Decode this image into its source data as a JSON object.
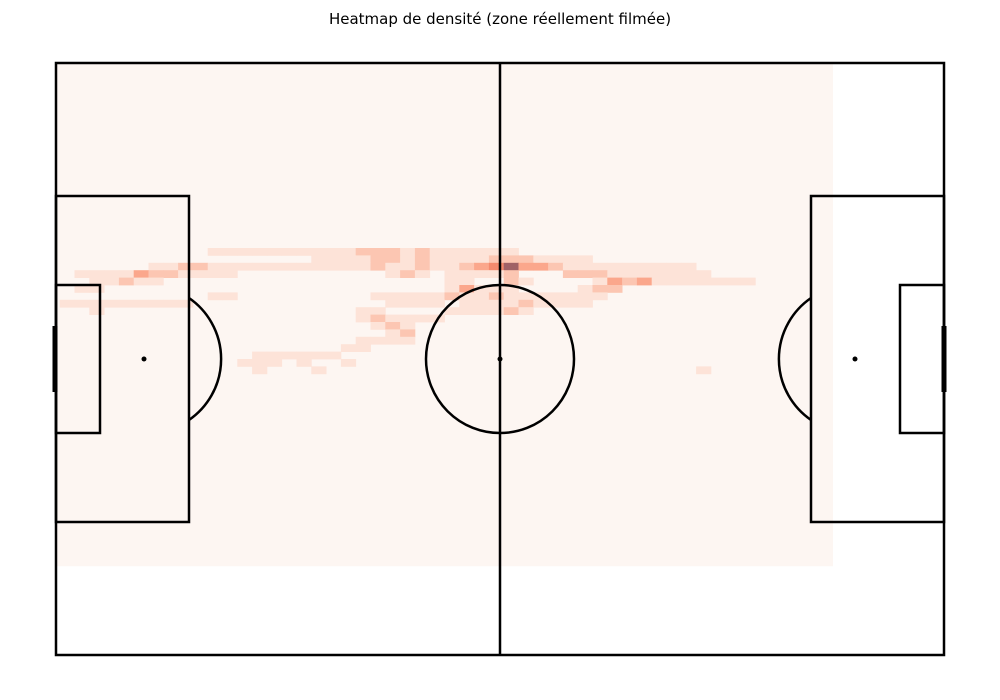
{
  "chart_data": {
    "type": "heatmap",
    "title": "Heatmap de densité (zone réellement filmée)",
    "xlabel": "",
    "ylabel": "",
    "colormap": [
      "#fdf6f2",
      "#fde3d8",
      "#fcc6b2",
      "#fba78c",
      "#f48a6e",
      "#a06166"
    ],
    "pitch": {
      "length_m": 120,
      "width_m": 80,
      "line_color": "#000000",
      "filmed_zone_x": [
        0,
        105
      ],
      "filmed_zone_y": [
        0,
        68
      ]
    },
    "cells": [
      {
        "x": 21.5,
        "y": 25.5,
        "v": 1
      },
      {
        "x": 23.5,
        "y": 25.5,
        "v": 1
      },
      {
        "x": 25.5,
        "y": 25.5,
        "v": 1
      },
      {
        "x": 27.5,
        "y": 25.5,
        "v": 1
      },
      {
        "x": 29.5,
        "y": 25.5,
        "v": 1
      },
      {
        "x": 31.5,
        "y": 25.5,
        "v": 1
      },
      {
        "x": 33.5,
        "y": 25.5,
        "v": 1
      },
      {
        "x": 35.5,
        "y": 25.5,
        "v": 1
      },
      {
        "x": 37.5,
        "y": 25.5,
        "v": 1
      },
      {
        "x": 39.5,
        "y": 25.5,
        "v": 1
      },
      {
        "x": 41.5,
        "y": 25.5,
        "v": 2
      },
      {
        "x": 43.5,
        "y": 25.5,
        "v": 2
      },
      {
        "x": 45.5,
        "y": 25.5,
        "v": 2
      },
      {
        "x": 47.5,
        "y": 25.5,
        "v": 1
      },
      {
        "x": 49.5,
        "y": 25.5,
        "v": 2
      },
      {
        "x": 51.5,
        "y": 25.5,
        "v": 1
      },
      {
        "x": 53.5,
        "y": 25.5,
        "v": 1
      },
      {
        "x": 55.5,
        "y": 25.5,
        "v": 1
      },
      {
        "x": 57.5,
        "y": 25.5,
        "v": 1
      },
      {
        "x": 59.5,
        "y": 25.5,
        "v": 1
      },
      {
        "x": 61.5,
        "y": 25.5,
        "v": 1
      },
      {
        "x": 35.5,
        "y": 26.5,
        "v": 1
      },
      {
        "x": 37.5,
        "y": 26.5,
        "v": 1
      },
      {
        "x": 39.5,
        "y": 26.5,
        "v": 1
      },
      {
        "x": 41.5,
        "y": 26.5,
        "v": 1
      },
      {
        "x": 43.5,
        "y": 26.5,
        "v": 2
      },
      {
        "x": 45.5,
        "y": 26.5,
        "v": 2
      },
      {
        "x": 47.5,
        "y": 26.5,
        "v": 1
      },
      {
        "x": 49.5,
        "y": 26.5,
        "v": 2
      },
      {
        "x": 51.5,
        "y": 26.5,
        "v": 1
      },
      {
        "x": 53.5,
        "y": 26.5,
        "v": 1
      },
      {
        "x": 55.5,
        "y": 26.5,
        "v": 1
      },
      {
        "x": 57.5,
        "y": 26.5,
        "v": 1
      },
      {
        "x": 59.5,
        "y": 26.5,
        "v": 2
      },
      {
        "x": 61.5,
        "y": 26.5,
        "v": 2
      },
      {
        "x": 63.5,
        "y": 26.5,
        "v": 2
      },
      {
        "x": 65.5,
        "y": 26.5,
        "v": 1
      },
      {
        "x": 67.5,
        "y": 26.5,
        "v": 1
      },
      {
        "x": 69.5,
        "y": 26.5,
        "v": 1
      },
      {
        "x": 71.5,
        "y": 26.5,
        "v": 1
      },
      {
        "x": 13.5,
        "y": 27.5,
        "v": 1
      },
      {
        "x": 15.5,
        "y": 27.5,
        "v": 1
      },
      {
        "x": 17.5,
        "y": 27.5,
        "v": 2
      },
      {
        "x": 19.5,
        "y": 27.5,
        "v": 2
      },
      {
        "x": 21.5,
        "y": 27.5,
        "v": 1
      },
      {
        "x": 23.5,
        "y": 27.5,
        "v": 1
      },
      {
        "x": 25.5,
        "y": 27.5,
        "v": 1
      },
      {
        "x": 27.5,
        "y": 27.5,
        "v": 1
      },
      {
        "x": 29.5,
        "y": 27.5,
        "v": 1
      },
      {
        "x": 31.5,
        "y": 27.5,
        "v": 1
      },
      {
        "x": 33.5,
        "y": 27.5,
        "v": 1
      },
      {
        "x": 35.5,
        "y": 27.5,
        "v": 1
      },
      {
        "x": 37.5,
        "y": 27.5,
        "v": 1
      },
      {
        "x": 39.5,
        "y": 27.5,
        "v": 1
      },
      {
        "x": 41.5,
        "y": 27.5,
        "v": 1
      },
      {
        "x": 43.5,
        "y": 27.5,
        "v": 2
      },
      {
        "x": 45.5,
        "y": 27.5,
        "v": 1
      },
      {
        "x": 47.5,
        "y": 27.5,
        "v": 1
      },
      {
        "x": 49.5,
        "y": 27.5,
        "v": 2
      },
      {
        "x": 51.5,
        "y": 27.5,
        "v": 1
      },
      {
        "x": 53.5,
        "y": 27.5,
        "v": 1
      },
      {
        "x": 55.5,
        "y": 27.5,
        "v": 2
      },
      {
        "x": 57.5,
        "y": 27.5,
        "v": 3
      },
      {
        "x": 59.5,
        "y": 27.5,
        "v": 4
      },
      {
        "x": 61.5,
        "y": 27.5,
        "v": 5
      },
      {
        "x": 63.5,
        "y": 27.5,
        "v": 3
      },
      {
        "x": 65.5,
        "y": 27.5,
        "v": 3
      },
      {
        "x": 67.5,
        "y": 27.5,
        "v": 2
      },
      {
        "x": 69.5,
        "y": 27.5,
        "v": 1
      },
      {
        "x": 71.5,
        "y": 27.5,
        "v": 1
      },
      {
        "x": 73.5,
        "y": 27.5,
        "v": 1
      },
      {
        "x": 75.5,
        "y": 27.5,
        "v": 1
      },
      {
        "x": 77.5,
        "y": 27.5,
        "v": 1
      },
      {
        "x": 79.5,
        "y": 27.5,
        "v": 1
      },
      {
        "x": 81.5,
        "y": 27.5,
        "v": 1
      },
      {
        "x": 83.5,
        "y": 27.5,
        "v": 1
      },
      {
        "x": 85.5,
        "y": 27.5,
        "v": 1
      },
      {
        "x": 3.5,
        "y": 28.5,
        "v": 1
      },
      {
        "x": 5.5,
        "y": 28.5,
        "v": 1
      },
      {
        "x": 7.5,
        "y": 28.5,
        "v": 1
      },
      {
        "x": 9.5,
        "y": 28.5,
        "v": 1
      },
      {
        "x": 11.5,
        "y": 28.5,
        "v": 3
      },
      {
        "x": 13.5,
        "y": 28.5,
        "v": 2
      },
      {
        "x": 15.5,
        "y": 28.5,
        "v": 2
      },
      {
        "x": 17.5,
        "y": 28.5,
        "v": 1
      },
      {
        "x": 19.5,
        "y": 28.5,
        "v": 1
      },
      {
        "x": 21.5,
        "y": 28.5,
        "v": 1
      },
      {
        "x": 23.5,
        "y": 28.5,
        "v": 1
      },
      {
        "x": 45.5,
        "y": 28.5,
        "v": 1
      },
      {
        "x": 47.5,
        "y": 28.5,
        "v": 2
      },
      {
        "x": 49.5,
        "y": 28.5,
        "v": 1
      },
      {
        "x": 53.5,
        "y": 28.5,
        "v": 1
      },
      {
        "x": 55.5,
        "y": 28.5,
        "v": 1
      },
      {
        "x": 57.5,
        "y": 28.5,
        "v": 1
      },
      {
        "x": 59.5,
        "y": 28.5,
        "v": 1
      },
      {
        "x": 61.5,
        "y": 28.5,
        "v": 2
      },
      {
        "x": 69.5,
        "y": 28.5,
        "v": 2
      },
      {
        "x": 71.5,
        "y": 28.5,
        "v": 2
      },
      {
        "x": 73.5,
        "y": 28.5,
        "v": 2
      },
      {
        "x": 75.5,
        "y": 28.5,
        "v": 1
      },
      {
        "x": 77.5,
        "y": 28.5,
        "v": 1
      },
      {
        "x": 79.5,
        "y": 28.5,
        "v": 1
      },
      {
        "x": 81.5,
        "y": 28.5,
        "v": 1
      },
      {
        "x": 83.5,
        "y": 28.5,
        "v": 1
      },
      {
        "x": 85.5,
        "y": 28.5,
        "v": 1
      },
      {
        "x": 87.5,
        "y": 28.5,
        "v": 1
      },
      {
        "x": 5.5,
        "y": 29.5,
        "v": 1
      },
      {
        "x": 7.5,
        "y": 29.5,
        "v": 1
      },
      {
        "x": 9.5,
        "y": 29.5,
        "v": 2
      },
      {
        "x": 11.5,
        "y": 29.5,
        "v": 1
      },
      {
        "x": 13.5,
        "y": 29.5,
        "v": 1
      },
      {
        "x": 53.5,
        "y": 29.5,
        "v": 1
      },
      {
        "x": 55.5,
        "y": 29.5,
        "v": 1
      },
      {
        "x": 61.5,
        "y": 29.5,
        "v": 2
      },
      {
        "x": 63.5,
        "y": 29.5,
        "v": 1
      },
      {
        "x": 73.5,
        "y": 29.5,
        "v": 1
      },
      {
        "x": 75.5,
        "y": 29.5,
        "v": 3
      },
      {
        "x": 77.5,
        "y": 29.5,
        "v": 2
      },
      {
        "x": 79.5,
        "y": 29.5,
        "v": 3
      },
      {
        "x": 81.5,
        "y": 29.5,
        "v": 1
      },
      {
        "x": 83.5,
        "y": 29.5,
        "v": 1
      },
      {
        "x": 85.5,
        "y": 29.5,
        "v": 1
      },
      {
        "x": 87.5,
        "y": 29.5,
        "v": 1
      },
      {
        "x": 89.5,
        "y": 29.5,
        "v": 1
      },
      {
        "x": 91.5,
        "y": 29.5,
        "v": 1
      },
      {
        "x": 93.5,
        "y": 29.5,
        "v": 1
      },
      {
        "x": 3.5,
        "y": 30.5,
        "v": 1
      },
      {
        "x": 5.5,
        "y": 30.5,
        "v": 1
      },
      {
        "x": 53.5,
        "y": 30.5,
        "v": 1
      },
      {
        "x": 55.5,
        "y": 30.5,
        "v": 3
      },
      {
        "x": 57.5,
        "y": 30.5,
        "v": 1
      },
      {
        "x": 59.5,
        "y": 30.5,
        "v": 1
      },
      {
        "x": 61.5,
        "y": 30.5,
        "v": 1
      },
      {
        "x": 71.5,
        "y": 30.5,
        "v": 1
      },
      {
        "x": 73.5,
        "y": 30.5,
        "v": 2
      },
      {
        "x": 75.5,
        "y": 30.5,
        "v": 2
      },
      {
        "x": 21.5,
        "y": 31.5,
        "v": 1
      },
      {
        "x": 23.5,
        "y": 31.5,
        "v": 1
      },
      {
        "x": 43.5,
        "y": 31.5,
        "v": 1
      },
      {
        "x": 45.5,
        "y": 31.5,
        "v": 1
      },
      {
        "x": 47.5,
        "y": 31.5,
        "v": 1
      },
      {
        "x": 49.5,
        "y": 31.5,
        "v": 1
      },
      {
        "x": 51.5,
        "y": 31.5,
        "v": 1
      },
      {
        "x": 53.5,
        "y": 31.5,
        "v": 2
      },
      {
        "x": 55.5,
        "y": 31.5,
        "v": 1
      },
      {
        "x": 57.5,
        "y": 31.5,
        "v": 1
      },
      {
        "x": 59.5,
        "y": 31.5,
        "v": 2
      },
      {
        "x": 61.5,
        "y": 31.5,
        "v": 1
      },
      {
        "x": 63.5,
        "y": 31.5,
        "v": 1
      },
      {
        "x": 65.5,
        "y": 31.5,
        "v": 1
      },
      {
        "x": 67.5,
        "y": 31.5,
        "v": 1
      },
      {
        "x": 69.5,
        "y": 31.5,
        "v": 1
      },
      {
        "x": 71.5,
        "y": 31.5,
        "v": 1
      },
      {
        "x": 73.5,
        "y": 31.5,
        "v": 1
      },
      {
        "x": 1.5,
        "y": 32.5,
        "v": 1
      },
      {
        "x": 3.5,
        "y": 32.5,
        "v": 1
      },
      {
        "x": 5.5,
        "y": 32.5,
        "v": 1
      },
      {
        "x": 7.5,
        "y": 32.5,
        "v": 1
      },
      {
        "x": 9.5,
        "y": 32.5,
        "v": 1
      },
      {
        "x": 11.5,
        "y": 32.5,
        "v": 1
      },
      {
        "x": 13.5,
        "y": 32.5,
        "v": 1
      },
      {
        "x": 15.5,
        "y": 32.5,
        "v": 1
      },
      {
        "x": 17.5,
        "y": 32.5,
        "v": 1
      },
      {
        "x": 45.5,
        "y": 32.5,
        "v": 1
      },
      {
        "x": 47.5,
        "y": 32.5,
        "v": 1
      },
      {
        "x": 49.5,
        "y": 32.5,
        "v": 1
      },
      {
        "x": 51.5,
        "y": 32.5,
        "v": 1
      },
      {
        "x": 55.5,
        "y": 32.5,
        "v": 1
      },
      {
        "x": 57.5,
        "y": 32.5,
        "v": 1
      },
      {
        "x": 59.5,
        "y": 32.5,
        "v": 1
      },
      {
        "x": 61.5,
        "y": 32.5,
        "v": 1
      },
      {
        "x": 63.5,
        "y": 32.5,
        "v": 2
      },
      {
        "x": 65.5,
        "y": 32.5,
        "v": 1
      },
      {
        "x": 67.5,
        "y": 32.5,
        "v": 1
      },
      {
        "x": 69.5,
        "y": 32.5,
        "v": 1
      },
      {
        "x": 71.5,
        "y": 32.5,
        "v": 1
      },
      {
        "x": 5.5,
        "y": 33.5,
        "v": 1
      },
      {
        "x": 41.5,
        "y": 33.5,
        "v": 1
      },
      {
        "x": 43.5,
        "y": 33.5,
        "v": 1
      },
      {
        "x": 53.5,
        "y": 33.5,
        "v": 1
      },
      {
        "x": 55.5,
        "y": 33.5,
        "v": 1
      },
      {
        "x": 57.5,
        "y": 33.5,
        "v": 1
      },
      {
        "x": 59.5,
        "y": 33.5,
        "v": 1
      },
      {
        "x": 61.5,
        "y": 33.5,
        "v": 2
      },
      {
        "x": 63.5,
        "y": 33.5,
        "v": 1
      },
      {
        "x": 41.5,
        "y": 34.5,
        "v": 1
      },
      {
        "x": 43.5,
        "y": 34.5,
        "v": 2
      },
      {
        "x": 45.5,
        "y": 34.5,
        "v": 1
      },
      {
        "x": 47.5,
        "y": 34.5,
        "v": 1
      },
      {
        "x": 49.5,
        "y": 34.5,
        "v": 1
      },
      {
        "x": 51.5,
        "y": 34.5,
        "v": 1
      },
      {
        "x": 43.5,
        "y": 35.5,
        "v": 1
      },
      {
        "x": 45.5,
        "y": 35.5,
        "v": 2
      },
      {
        "x": 47.5,
        "y": 35.5,
        "v": 1
      },
      {
        "x": 45.5,
        "y": 36.5,
        "v": 1
      },
      {
        "x": 47.5,
        "y": 36.5,
        "v": 2
      },
      {
        "x": 41.5,
        "y": 37.5,
        "v": 1
      },
      {
        "x": 43.5,
        "y": 37.5,
        "v": 1
      },
      {
        "x": 45.5,
        "y": 37.5,
        "v": 1
      },
      {
        "x": 47.5,
        "y": 37.5,
        "v": 1
      },
      {
        "x": 39.5,
        "y": 38.5,
        "v": 1
      },
      {
        "x": 41.5,
        "y": 38.5,
        "v": 1
      },
      {
        "x": 27.5,
        "y": 39.5,
        "v": 1
      },
      {
        "x": 29.5,
        "y": 39.5,
        "v": 1
      },
      {
        "x": 31.5,
        "y": 39.5,
        "v": 1
      },
      {
        "x": 33.5,
        "y": 39.5,
        "v": 1
      },
      {
        "x": 35.5,
        "y": 39.5,
        "v": 1
      },
      {
        "x": 37.5,
        "y": 39.5,
        "v": 1
      },
      {
        "x": 25.5,
        "y": 40.5,
        "v": 1
      },
      {
        "x": 27.5,
        "y": 40.5,
        "v": 1
      },
      {
        "x": 29.5,
        "y": 40.5,
        "v": 1
      },
      {
        "x": 33.5,
        "y": 40.5,
        "v": 1
      },
      {
        "x": 39.5,
        "y": 40.5,
        "v": 1
      },
      {
        "x": 27.5,
        "y": 41.5,
        "v": 1
      },
      {
        "x": 35.5,
        "y": 41.5,
        "v": 1
      },
      {
        "x": 87.5,
        "y": 41.5,
        "v": 1
      }
    ]
  }
}
